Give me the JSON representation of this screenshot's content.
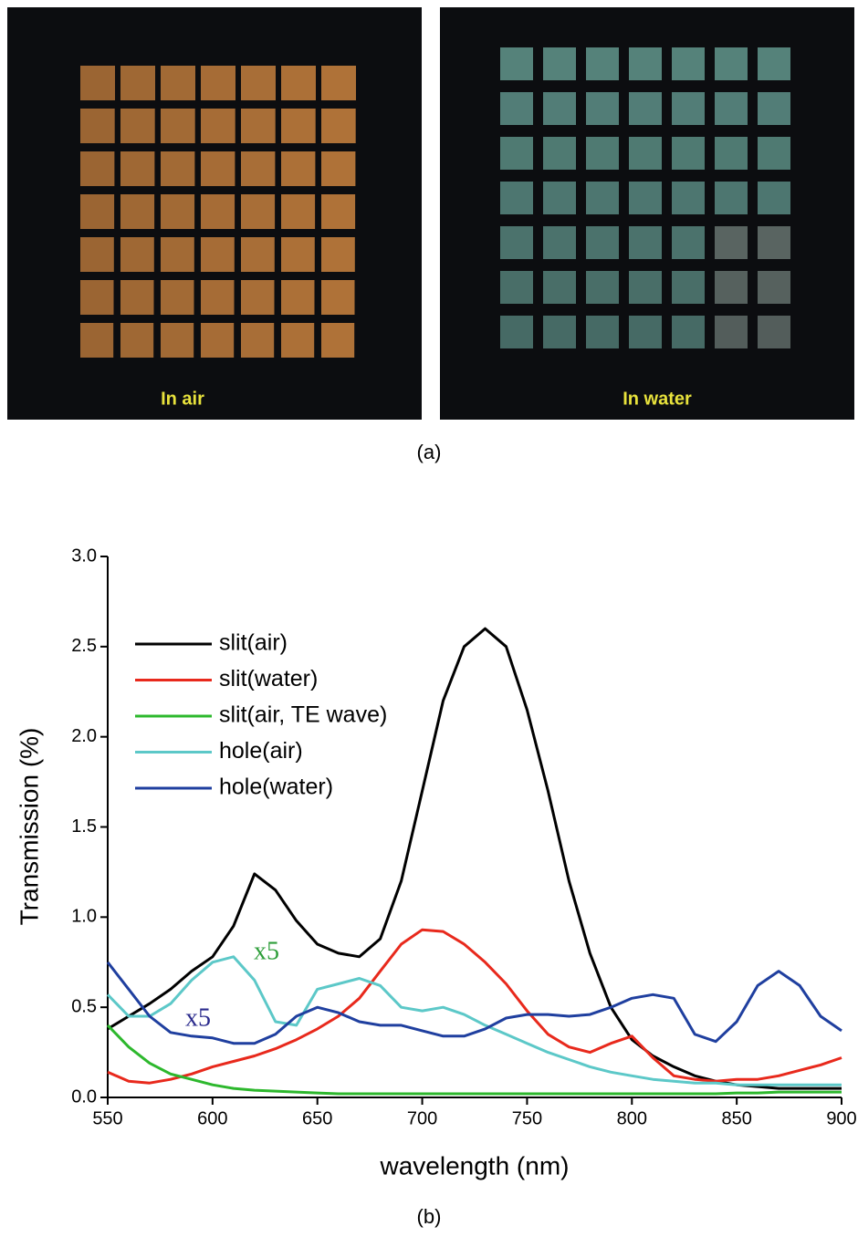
{
  "figure": {
    "photos": [
      {
        "label": "In air"
      },
      {
        "label": "In water"
      }
    ],
    "panel_a_label": "(a)",
    "panel_b_label": "(b)"
  },
  "chart_data": {
    "type": "line",
    "x_label": "wavelength (nm)",
    "y_label": "Transmission (%)",
    "x": [
      550,
      560,
      570,
      580,
      590,
      600,
      610,
      620,
      630,
      640,
      650,
      660,
      670,
      680,
      690,
      700,
      710,
      720,
      730,
      740,
      750,
      760,
      770,
      780,
      790,
      800,
      810,
      820,
      830,
      840,
      850,
      860,
      870,
      880,
      890,
      900
    ],
    "series": [
      {
        "name": "slit(air)",
        "color": "#000000",
        "values": [
          0.38,
          0.45,
          0.52,
          0.6,
          0.7,
          0.78,
          0.95,
          1.24,
          1.15,
          0.98,
          0.85,
          0.8,
          0.78,
          0.88,
          1.2,
          1.7,
          2.2,
          2.5,
          2.6,
          2.5,
          2.15,
          1.7,
          1.2,
          0.8,
          0.5,
          0.32,
          0.23,
          0.17,
          0.12,
          0.09,
          0.07,
          0.06,
          0.05,
          0.05,
          0.05,
          0.05
        ]
      },
      {
        "name": "slit(water)",
        "color": "#e8291c",
        "values": [
          0.14,
          0.09,
          0.08,
          0.1,
          0.13,
          0.17,
          0.2,
          0.23,
          0.27,
          0.32,
          0.38,
          0.45,
          0.55,
          0.7,
          0.85,
          0.93,
          0.92,
          0.85,
          0.75,
          0.63,
          0.48,
          0.35,
          0.28,
          0.25,
          0.3,
          0.34,
          0.22,
          0.12,
          0.1,
          0.09,
          0.1,
          0.1,
          0.12,
          0.15,
          0.18,
          0.22
        ]
      },
      {
        "name": "slit(air, TE wave)",
        "color": "#2db82d",
        "values": [
          0.4,
          0.28,
          0.19,
          0.13,
          0.1,
          0.07,
          0.05,
          0.04,
          0.035,
          0.03,
          0.025,
          0.02,
          0.02,
          0.02,
          0.02,
          0.02,
          0.02,
          0.02,
          0.02,
          0.02,
          0.02,
          0.02,
          0.02,
          0.02,
          0.02,
          0.02,
          0.02,
          0.02,
          0.02,
          0.02,
          0.025,
          0.025,
          0.03,
          0.03,
          0.03,
          0.03
        ]
      },
      {
        "name": "hole(air)",
        "color": "#5cc8c8",
        "values": [
          0.57,
          0.45,
          0.45,
          0.52,
          0.65,
          0.75,
          0.78,
          0.65,
          0.42,
          0.4,
          0.6,
          0.63,
          0.66,
          0.62,
          0.5,
          0.48,
          0.5,
          0.46,
          0.4,
          0.35,
          0.3,
          0.25,
          0.21,
          0.17,
          0.14,
          0.12,
          0.1,
          0.09,
          0.08,
          0.08,
          0.07,
          0.07,
          0.07,
          0.07,
          0.07,
          0.07
        ]
      },
      {
        "name": "hole(water)",
        "color": "#1f3f9f",
        "values": [
          0.75,
          0.6,
          0.45,
          0.36,
          0.34,
          0.33,
          0.3,
          0.3,
          0.35,
          0.45,
          0.5,
          0.47,
          0.42,
          0.4,
          0.4,
          0.37,
          0.34,
          0.34,
          0.38,
          0.44,
          0.46,
          0.46,
          0.45,
          0.46,
          0.5,
          0.55,
          0.57,
          0.55,
          0.35,
          0.31,
          0.42,
          0.62,
          0.7,
          0.62,
          0.45,
          0.37
        ]
      }
    ],
    "annotations": [
      {
        "text": "x5",
        "color": "#2e9e3a"
      },
      {
        "text": "x5",
        "color": "#2a2a8c"
      }
    ],
    "xlim": [
      550,
      900
    ],
    "xticks": [
      550,
      600,
      650,
      700,
      750,
      800,
      850,
      900
    ],
    "ylim": [
      0,
      3
    ],
    "yticks": [
      {
        "value": 0,
        "label": "0.0"
      },
      0.5,
      {
        "value": 1,
        "label": "1.0"
      },
      1.5,
      {
        "value": 2,
        "label": "2.0"
      },
      2.5,
      {
        "value": 3,
        "label": "3.0"
      }
    ],
    "grid": false,
    "legend": "upper-left"
  }
}
